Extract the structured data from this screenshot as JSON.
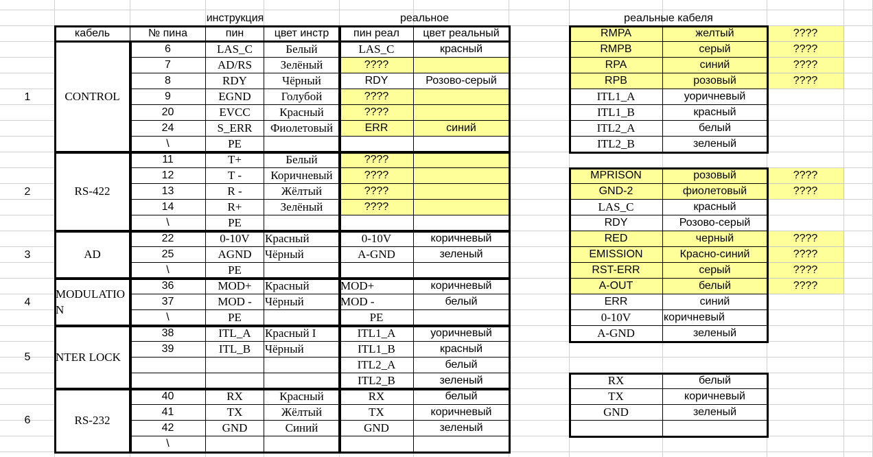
{
  "left": {
    "title_instruction": "инструкция",
    "title_real": "реальное",
    "headers": [
      "кабель",
      "№ пина",
      "пин",
      "цвет инстр",
      "пин реал",
      "цвет реальный"
    ],
    "groups": [
      {
        "num": "1",
        "cable": "CONTROL",
        "rows": [
          {
            "pin_num": "6",
            "pin": "LAS_C",
            "color": "Белый",
            "pin_real": "LAS_C",
            "color_real": "красный",
            "highlight": false
          },
          {
            "pin_num": "7",
            "pin": "AD/RS",
            "color": "Зелёный",
            "pin_real": "????",
            "color_real": "",
            "highlight": true
          },
          {
            "pin_num": "8",
            "pin": "RDY",
            "color": "Чёрный",
            "pin_real": "RDY",
            "color_real": "Розово-серый",
            "highlight": false
          },
          {
            "pin_num": "9",
            "pin": "EGND",
            "color": "Голубой",
            "pin_real": "????",
            "color_real": "",
            "highlight": true
          },
          {
            "pin_num": "20",
            "pin": "EVCC",
            "color": "Красный",
            "pin_real": "????",
            "color_real": "",
            "highlight": true
          },
          {
            "pin_num": "24",
            "pin": "S_ERR",
            "color": "Фиолетовый",
            "pin_real": "ERR",
            "color_real": "синий",
            "highlight": true
          },
          {
            "pin_num": "\\",
            "pin": "PE",
            "color": "",
            "pin_real": "",
            "color_real": "",
            "highlight": false
          }
        ]
      },
      {
        "num": "2",
        "cable": "RS-422",
        "rows": [
          {
            "pin_num": "11",
            "pin": "T+",
            "color": "Белый",
            "pin_real": "????",
            "color_real": "",
            "highlight": true
          },
          {
            "pin_num": "12",
            "pin": "T -",
            "color": "Коричневый",
            "pin_real": "????",
            "color_real": "",
            "highlight": true
          },
          {
            "pin_num": "13",
            "pin": "R -",
            "color": "Жёлтый",
            "pin_real": "????",
            "color_real": "",
            "highlight": true
          },
          {
            "pin_num": "14",
            "pin": "R+",
            "color": "Зелёный",
            "pin_real": "????",
            "color_real": "",
            "highlight": true
          },
          {
            "pin_num": "\\",
            "pin": "PE",
            "color": "",
            "pin_real": "",
            "color_real": "",
            "highlight": false
          }
        ]
      },
      {
        "num": "3",
        "cable": "AD",
        "rows": [
          {
            "pin_num": "22",
            "pin": "0-10V",
            "color": "Красный",
            "pin_real": "0-10V",
            "color_real": "коричневый",
            "highlight": false
          },
          {
            "pin_num": "25",
            "pin": "AGND",
            "color": "Чёрный",
            "pin_real": "A-GND",
            "color_real": "зеленый",
            "highlight": false
          },
          {
            "pin_num": "\\",
            "pin": "PE",
            "color": "",
            "pin_real": "",
            "color_real": "",
            "highlight": false
          }
        ]
      },
      {
        "num": "4",
        "cable": "MODULATION",
        "rows": [
          {
            "pin_num": "36",
            "pin": "MOD+",
            "color": "Красный",
            "pin_real": "MOD+",
            "color_real": "коричневый",
            "highlight": false
          },
          {
            "pin_num": "37",
            "pin": "MOD -",
            "color": "Чёрный",
            "pin_real": "MOD -",
            "color_real": "белый",
            "highlight": false
          },
          {
            "pin_num": "\\",
            "pin": "PE",
            "color": "",
            "pin_real": "PE",
            "color_real": "",
            "highlight": false
          }
        ]
      },
      {
        "num": "5",
        "cable": "NTER LOCK",
        "rows": [
          {
            "pin_num": "38",
            "pin": "ITL_A",
            "color": "Красный I",
            "pin_real": "ITL1_A",
            "color_real": "уоричневый",
            "highlight": false
          },
          {
            "pin_num": "39",
            "pin": "ITL_B",
            "color": "Чёрный",
            "pin_real": "ITL1_B",
            "color_real": "красный",
            "highlight": false
          },
          {
            "pin_num": "",
            "pin": "",
            "color": "",
            "pin_real": "ITL2_A",
            "color_real": "белый",
            "highlight": false
          },
          {
            "pin_num": "",
            "pin": "",
            "color": "",
            "pin_real": "ITL2_B",
            "color_real": "зеленый",
            "highlight": false
          }
        ]
      },
      {
        "num": "6",
        "cable": "RS-232",
        "rows": [
          {
            "pin_num": "40",
            "pin": "RX",
            "color": "Красный",
            "pin_real": "RX",
            "color_real": "белый",
            "highlight": false
          },
          {
            "pin_num": "41",
            "pin": "TX",
            "color": "Жёлтый",
            "pin_real": "TX",
            "color_real": "коричневый",
            "highlight": false
          },
          {
            "pin_num": "42",
            "pin": "GND",
            "color": "Синий",
            "pin_real": "GND",
            "color_real": "зеленый",
            "highlight": false
          },
          {
            "pin_num": "\\",
            "pin": "",
            "color": "",
            "pin_real": "",
            "color_real": "",
            "highlight": false
          }
        ]
      }
    ]
  },
  "right": {
    "title": "реальные кабеля",
    "highlight_color": "#ffff99",
    "tables": [
      {
        "rows": [
          {
            "pin": "RMPA",
            "color": "желтый",
            "extra": "????",
            "highlight": true
          },
          {
            "pin": "RMPB",
            "color": "серый",
            "extra": "????",
            "highlight": true
          },
          {
            "pin": "RPA",
            "color": "синий",
            "extra": "????",
            "highlight": true
          },
          {
            "pin": "RPB",
            "color": "розовый",
            "extra": "????",
            "highlight": true
          },
          {
            "pin": "ITL1_A",
            "color": "уоричневый",
            "extra": "",
            "highlight": false
          },
          {
            "pin": "ITL1_B",
            "color": "красный",
            "extra": "",
            "highlight": false
          },
          {
            "pin": "ITL2_A",
            "color": "белый",
            "extra": "",
            "highlight": false
          },
          {
            "pin": "ITL2_B",
            "color": "зеленый",
            "extra": "",
            "highlight": false
          }
        ]
      },
      {
        "rows": [
          {
            "pin": "MPRISON",
            "color": "розовый",
            "extra": "????",
            "highlight": true
          },
          {
            "pin": "GND-2",
            "color": "фиолетовый",
            "extra": "????",
            "highlight": true
          },
          {
            "pin": "LAS_C",
            "color": "красный",
            "extra": "",
            "highlight": false
          },
          {
            "pin": "RDY",
            "color": "Розово-серый",
            "extra": "",
            "highlight": false
          },
          {
            "pin": "RED",
            "color": "черный",
            "extra": "????",
            "highlight": true
          },
          {
            "pin": "EMISSION",
            "color": "Красно-синий",
            "extra": "????",
            "highlight": true
          },
          {
            "pin": "RST-ERR",
            "color": "серый",
            "extra": "????",
            "highlight": true
          },
          {
            "pin": "A-OUT",
            "color": "белый",
            "extra": "????",
            "highlight": true
          },
          {
            "pin": "ERR",
            "color": "синий",
            "extra": "",
            "highlight": false
          },
          {
            "pin": "0-10V",
            "color": "коричневый",
            "extra": "",
            "highlight": false
          },
          {
            "pin": "A-GND",
            "color": "зеленый",
            "extra": "",
            "highlight": false
          }
        ]
      },
      {
        "rows": [
          {
            "pin": "RX",
            "color": "белый",
            "extra": "",
            "highlight": false
          },
          {
            "pin": "TX",
            "color": "коричневый",
            "extra": "",
            "highlight": false
          },
          {
            "pin": "GND",
            "color": "зеленый",
            "extra": "",
            "highlight": false
          },
          {
            "pin": "",
            "color": "",
            "extra": "",
            "highlight": false
          }
        ]
      }
    ]
  }
}
